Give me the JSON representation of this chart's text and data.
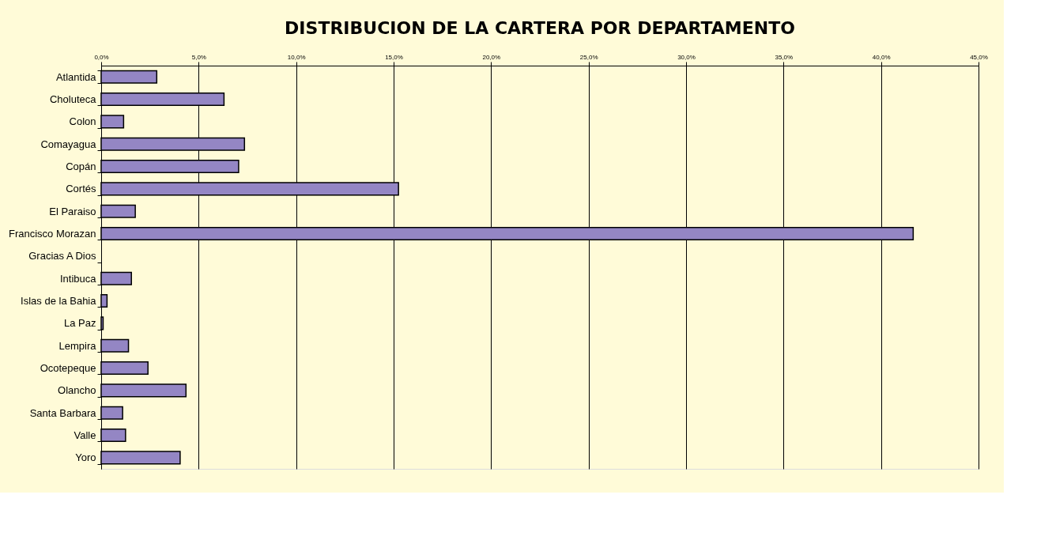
{
  "chart_data": {
    "type": "bar",
    "orientation": "horizontal",
    "title": "DISTRIBUCION DE LA CARTERA POR DEPARTAMENTO",
    "categories": [
      "Atlantida",
      "Choluteca",
      "Colon",
      "Comayagua",
      "Copán",
      "Cortés",
      "El Paraiso",
      "Francisco Morazan",
      "Gracias A Dios",
      "Intibuca",
      "Islas de la Bahia",
      "La Paz",
      "Lempira",
      "Ocotepeque",
      "Olancho",
      "Santa Barbara",
      "Valle",
      "Yoro"
    ],
    "values": [
      2.85,
      6.3,
      1.15,
      7.35,
      7.05,
      15.25,
      1.75,
      41.65,
      0,
      1.55,
      0.3,
      0.1,
      1.4,
      2.4,
      4.35,
      1.1,
      1.25,
      4.05
    ],
    "color": "#9486c4",
    "xlim": [
      0,
      45
    ],
    "xticks": [
      {
        "value": 0,
        "label": "0,0%"
      },
      {
        "value": 5,
        "label": "5,0%"
      },
      {
        "value": 10,
        "label": "10,0%"
      },
      {
        "value": 15,
        "label": "15,0%"
      },
      {
        "value": 20,
        "label": "20,0%"
      },
      {
        "value": 25,
        "label": "25,0%"
      },
      {
        "value": 30,
        "label": "30,0%"
      },
      {
        "value": 35,
        "label": "35,0%"
      },
      {
        "value": 40,
        "label": "40,0%"
      },
      {
        "value": 45,
        "label": "45,0%"
      }
    ],
    "grid": "x"
  }
}
